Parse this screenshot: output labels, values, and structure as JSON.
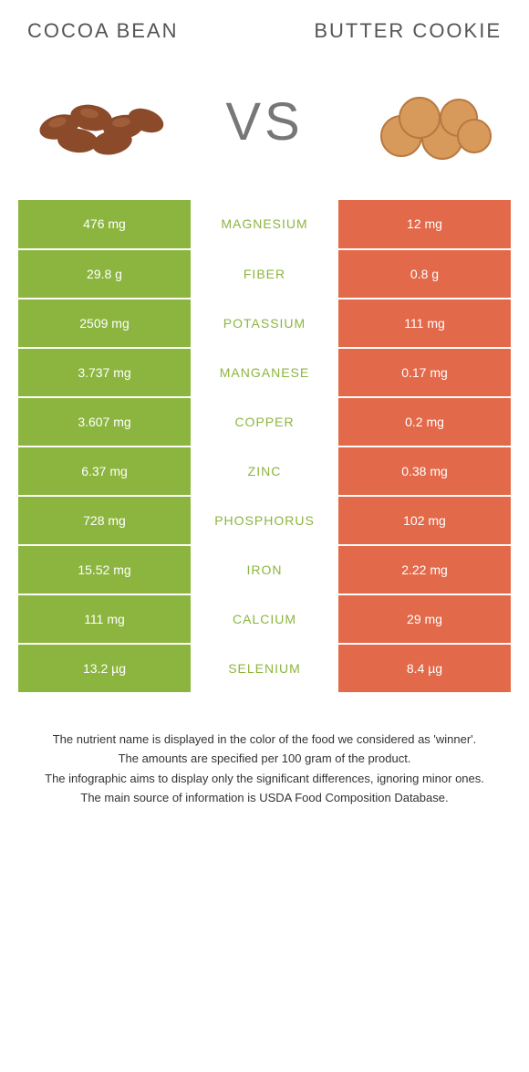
{
  "foods": {
    "left": {
      "name": "Cocoa bean",
      "color": "#8cb53f"
    },
    "right": {
      "name": "Butter cookie",
      "color": "#e2694a"
    }
  },
  "vs_label": "VS",
  "label_winner_color": "#8cb53f",
  "nutrients": [
    {
      "label": "Magnesium",
      "left": "476 mg",
      "right": "12 mg",
      "winner": "left"
    },
    {
      "label": "Fiber",
      "left": "29.8 g",
      "right": "0.8 g",
      "winner": "left"
    },
    {
      "label": "Potassium",
      "left": "2509 mg",
      "right": "111 mg",
      "winner": "left"
    },
    {
      "label": "Manganese",
      "left": "3.737 mg",
      "right": "0.17 mg",
      "winner": "left"
    },
    {
      "label": "Copper",
      "left": "3.607 mg",
      "right": "0.2 mg",
      "winner": "left"
    },
    {
      "label": "Zinc",
      "left": "6.37 mg",
      "right": "0.38 mg",
      "winner": "left"
    },
    {
      "label": "Phosphorus",
      "left": "728 mg",
      "right": "102 mg",
      "winner": "left"
    },
    {
      "label": "Iron",
      "left": "15.52 mg",
      "right": "2.22 mg",
      "winner": "left"
    },
    {
      "label": "Calcium",
      "left": "111 mg",
      "right": "29 mg",
      "winner": "left"
    },
    {
      "label": "Selenium",
      "left": "13.2 µg",
      "right": "8.4 µg",
      "winner": "left"
    }
  ],
  "footnotes": [
    "The nutrient name is displayed in the color of the food we considered as 'winner'.",
    "The amounts are specified per 100 gram of the product.",
    "The infographic aims to display only the significant differences, ignoring minor ones.",
    "The main source of information is USDA Food Composition Database."
  ]
}
